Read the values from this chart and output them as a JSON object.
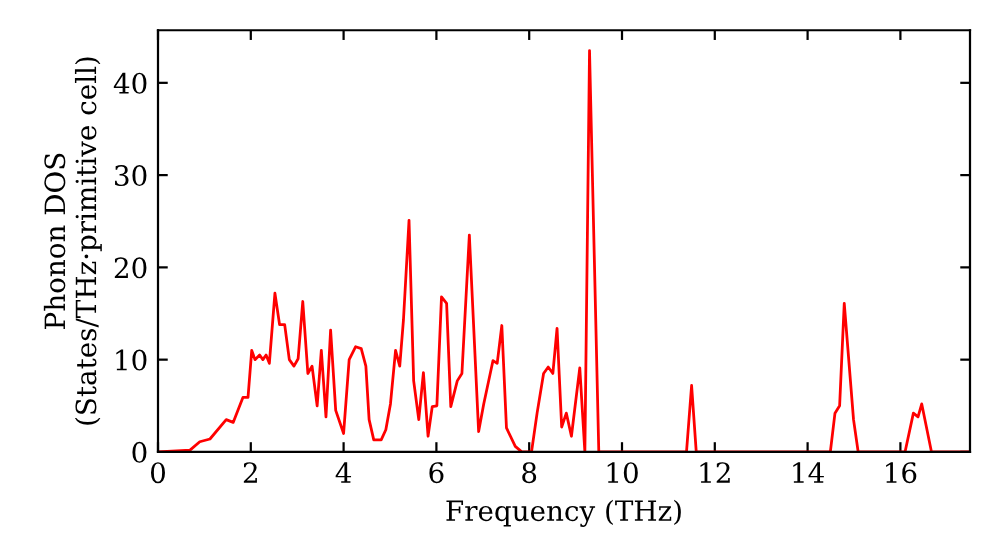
{
  "chart_data": {
    "type": "line",
    "xlabel": "Frequency (THz)",
    "ylabel": "Phonon DOS\n(States/THz·primitive cell)",
    "xlim": [
      0,
      17.5
    ],
    "ylim": [
      0,
      45.7
    ],
    "xticks": [
      0,
      2,
      4,
      6,
      8,
      10,
      12,
      14,
      16
    ],
    "yticks": [
      0,
      10,
      20,
      30,
      40
    ],
    "grid": false,
    "marker": "none",
    "line_style": "solid",
    "series": [
      {
        "color": "#ff0000",
        "x": [
          0,
          0.69,
          0.9,
          1.12,
          1.47,
          1.62,
          1.83,
          1.94,
          2.02,
          2.09,
          2.19,
          2.26,
          2.33,
          2.4,
          2.52,
          2.62,
          2.73,
          2.83,
          2.93,
          3.02,
          3.12,
          3.23,
          3.32,
          3.43,
          3.52,
          3.62,
          3.72,
          3.83,
          4.0,
          4.12,
          4.26,
          4.38,
          4.48,
          4.55,
          4.65,
          4.81,
          4.91,
          5.01,
          5.12,
          5.21,
          5.29,
          5.41,
          5.51,
          5.62,
          5.72,
          5.82,
          5.91,
          6.01,
          6.11,
          6.22,
          6.31,
          6.45,
          6.55,
          6.71,
          6.91,
          7.02,
          7.22,
          7.31,
          7.41,
          7.51,
          7.7,
          7.84,
          8.05,
          8.17,
          8.31,
          8.41,
          8.51,
          8.6,
          8.7,
          8.8,
          8.91,
          9.09,
          9.2,
          9.3,
          9.5,
          11.39,
          11.5,
          11.6,
          14.49,
          14.59,
          14.69,
          14.79,
          14.99,
          15.09,
          16.1,
          16.28,
          16.38,
          16.46,
          16.67,
          17.5
        ],
        "values": [
          0,
          0.2,
          1.1,
          1.4,
          3.5,
          3.2,
          5.9,
          5.9,
          11.0,
          10,
          10.5,
          10,
          10.5,
          9.6,
          17.2,
          13.8,
          13.8,
          10,
          9.3,
          10.1,
          16.3,
          8.5,
          9.3,
          5.0,
          11.0,
          3.8,
          13.2,
          4.5,
          2.0,
          10,
          11.4,
          11.2,
          9.3,
          3.5,
          1.3,
          1.3,
          2.4,
          5.2,
          11.0,
          9.3,
          14.3,
          25.1,
          7.7,
          3.5,
          8.6,
          1.7,
          4.9,
          5.0,
          16.8,
          16.1,
          4.9,
          7.7,
          8.5,
          23.5,
          2.2,
          5.2,
          9.9,
          9.6,
          13.7,
          2.6,
          0.6,
          0,
          0,
          4.2,
          8.5,
          9.2,
          8.5,
          13.4,
          2.7,
          4.2,
          1.7,
          9.1,
          0,
          43.5,
          0,
          0,
          7.2,
          0,
          0,
          4.2,
          5.0,
          16.1,
          3.5,
          0,
          0,
          4.2,
          3.8,
          5.2,
          0,
          0
        ]
      }
    ]
  }
}
